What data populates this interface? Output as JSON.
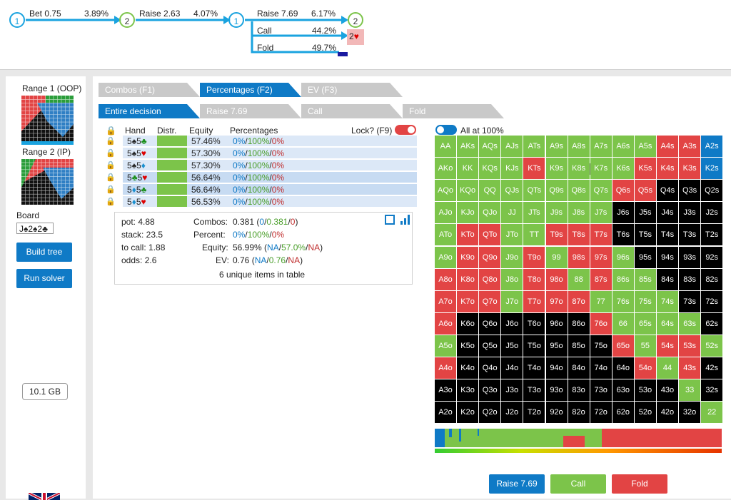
{
  "tree": {
    "n1": "1",
    "bet1": "Bet 0.75",
    "bet1_pct": "3.89%",
    "n2": "2",
    "raise1": "Raise 2.63",
    "raise1_pct": "4.07%",
    "n3": "1",
    "raise2": "Raise 7.69",
    "raise2_pct": "6.17%",
    "n4": "2",
    "call": "Call",
    "call_pct": "44.2%",
    "call_node": "2",
    "fold": "Fold",
    "fold_pct": "49.7%"
  },
  "left": {
    "range1": "Range 1 (OOP)",
    "range2": "Range 2 (IP)",
    "board_label": "Board",
    "board_value": "J♠2♠2♣",
    "build_tree": "Build tree",
    "run_solver": "Run solver",
    "memory": "10.1 GB"
  },
  "tabs": {
    "combos": "Combos (F1)",
    "percentages": "Percentages (F2)",
    "ev": "EV (F3)",
    "entire": "Entire decision",
    "raise": "Raise 7.69",
    "call": "Call",
    "fold": "Fold"
  },
  "board_cards": [
    "J♠",
    "2♠",
    "2♣"
  ],
  "table": {
    "headers": [
      "Hand",
      "Distr.",
      "Equity",
      "Percentages"
    ],
    "lock_label": "Lock? (F9)",
    "rows": [
      {
        "hand": "5♠5♣",
        "equity": "57.46%",
        "p1": "0%",
        "p2": "100%",
        "p3": "0%"
      },
      {
        "hand": "5♠5♥",
        "equity": "57.30%",
        "p1": "0%",
        "p2": "100%",
        "p3": "0%"
      },
      {
        "hand": "5♠5♦",
        "equity": "57.30%",
        "p1": "0%",
        "p2": "100%",
        "p3": "0%"
      },
      {
        "hand": "5♣5♥",
        "equity": "56.64%",
        "p1": "0%",
        "p2": "100%",
        "p3": "0%"
      },
      {
        "hand": "5♦5♣",
        "equity": "56.64%",
        "p1": "0%",
        "p2": "100%",
        "p3": "0%"
      },
      {
        "hand": "5♦5♥",
        "equity": "56.53%",
        "p1": "0%",
        "p2": "100%",
        "p3": "0%"
      }
    ]
  },
  "stats": {
    "pot": "pot: 4.88",
    "stack": "stack: 23.5",
    "to_call": "to call: 1.88",
    "odds": "odds: 2.6",
    "combos_label": "Combos:",
    "combos_a": "0.381",
    "combos_b": "0",
    "combos_c": "0.381",
    "combos_d": "0",
    "percent_label": "Percent:",
    "percent_b": "0%",
    "percent_c": "100%",
    "percent_d": "0%",
    "equity_label": "Equity:",
    "equity_a": "56.99%",
    "equity_b": "NA",
    "equity_c": "57.0%",
    "equity_d": "NA",
    "ev_label": "EV:",
    "ev_a": "0.76",
    "ev_b": "NA",
    "ev_c": "0.76",
    "ev_d": "NA",
    "unique": "6 unique items in table"
  },
  "all_at": "All at 100%",
  "actions": {
    "raise": "Raise 7.69",
    "call": "Call",
    "fold": "Fold"
  },
  "colors": {
    "raise": "#0f7ac6",
    "call": "#7cc44a",
    "fold": "#e24444",
    "black": "#000000"
  },
  "grid": [
    [
      "AA",
      "AKs",
      "AQs",
      "AJs",
      "ATs",
      "A9s",
      "A8s",
      "A7s",
      "A6s",
      "A5s",
      "A4s",
      "A3s",
      "A2s"
    ],
    [
      "AKo",
      "KK",
      "KQs",
      "KJs",
      "KTs",
      "K9s",
      "K8s",
      "K7s",
      "K6s",
      "K5s",
      "K4s",
      "K3s",
      "K2s"
    ],
    [
      "AQo",
      "KQo",
      "QQ",
      "QJs",
      "QTs",
      "Q9s",
      "Q8s",
      "Q7s",
      "Q6s",
      "Q5s",
      "Q4s",
      "Q3s",
      "Q2s"
    ],
    [
      "AJo",
      "KJo",
      "QJo",
      "JJ",
      "JTs",
      "J9s",
      "J8s",
      "J7s",
      "J6s",
      "J5s",
      "J4s",
      "J3s",
      "J2s"
    ],
    [
      "ATo",
      "KTo",
      "QTo",
      "JTo",
      "TT",
      "T9s",
      "T8s",
      "T7s",
      "T6s",
      "T5s",
      "T4s",
      "T3s",
      "T2s"
    ],
    [
      "A9o",
      "K9o",
      "Q9o",
      "J9o",
      "T9o",
      "99",
      "98s",
      "97s",
      "96s",
      "95s",
      "94s",
      "93s",
      "92s"
    ],
    [
      "A8o",
      "K8o",
      "Q8o",
      "J8o",
      "T8o",
      "98o",
      "88",
      "87s",
      "86s",
      "85s",
      "84s",
      "83s",
      "82s"
    ],
    [
      "A7o",
      "K7o",
      "Q7o",
      "J7o",
      "T7o",
      "97o",
      "87o",
      "77",
      "76s",
      "75s",
      "74s",
      "73s",
      "72s"
    ],
    [
      "A6o",
      "K6o",
      "Q6o",
      "J6o",
      "T6o",
      "96o",
      "86o",
      "76o",
      "66",
      "65s",
      "64s",
      "63s",
      "62s"
    ],
    [
      "A5o",
      "K5o",
      "Q5o",
      "J5o",
      "T5o",
      "95o",
      "85o",
      "75o",
      "65o",
      "55",
      "54s",
      "53s",
      "52s"
    ],
    [
      "A4o",
      "K4o",
      "Q4o",
      "J4o",
      "T4o",
      "94o",
      "84o",
      "74o",
      "64o",
      "54o",
      "44",
      "43s",
      "42s"
    ],
    [
      "A3o",
      "K3o",
      "Q3o",
      "J3o",
      "T3o",
      "93o",
      "83o",
      "73o",
      "63o",
      "53o",
      "43o",
      "33",
      "32s"
    ],
    [
      "A2o",
      "K2o",
      "Q2o",
      "J2o",
      "T2o",
      "92o",
      "82o",
      "72o",
      "62o",
      "52o",
      "42o",
      "32o",
      "22"
    ]
  ],
  "grid_colors": [
    "GGGGGGGGGGRRB",
    "GGGGRGGGGRRRB",
    "GGGGGGGGRRKKK",
    "GGGGGGGGKKKKK",
    "GRRGGRRRKKKKK",
    "GRRGRGRRGKKKK",
    "RRRGRRGRGGKKK",
    "RRRGRRRGGGGKK",
    "RKKKKKKRGGGGK",
    "GKKKKKKKRGRRG",
    "RKKKKKKKKRGRK",
    "KKKKKKKKKKKGK",
    "KKKKKKKKKKKKG"
  ]
}
